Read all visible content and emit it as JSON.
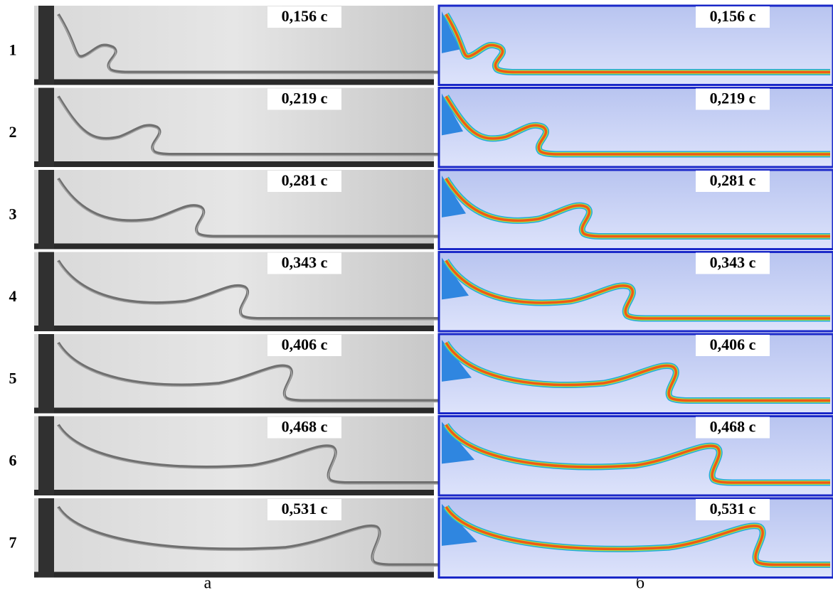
{
  "rows": [
    {
      "number": "1",
      "time_left": "0,156 с",
      "time_right": "0,156 с"
    },
    {
      "number": "2",
      "time_left": "0,219 с",
      "time_right": "0,219 с"
    },
    {
      "number": "3",
      "time_left": "0,281 с",
      "time_right": "0,281 с"
    },
    {
      "number": "4",
      "time_left": "0,343 с",
      "time_right": "0,343 с"
    },
    {
      "number": "5",
      "time_left": "0,406 с",
      "time_right": "0,406 с"
    },
    {
      "number": "6",
      "time_left": "0,468 с",
      "time_right": "0,468 с"
    },
    {
      "number": "7",
      "time_left": "0,531 с",
      "time_right": "0,531 с"
    }
  ],
  "captions": {
    "left": "а",
    "right": "б"
  }
}
